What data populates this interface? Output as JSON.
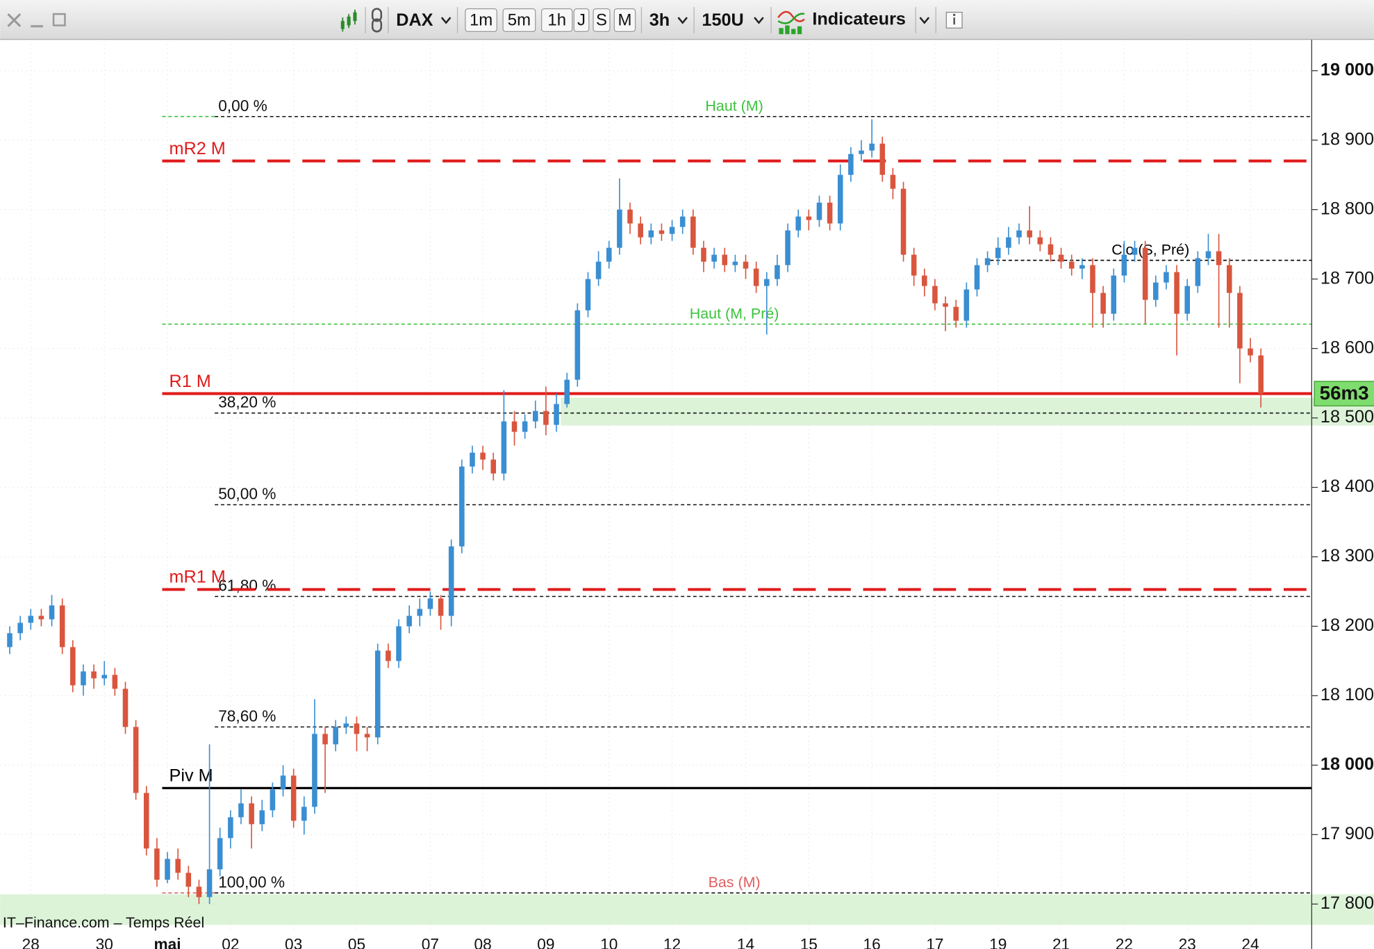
{
  "toolbar": {
    "symbol": "DAX",
    "intervals": [
      "1m",
      "5m",
      "1h",
      "J",
      "S",
      "M"
    ],
    "period": "3h",
    "units": "150U",
    "indicators": "Indicateurs"
  },
  "chart_data": {
    "type": "candlestick",
    "categories": [
      null,
      null,
      "28",
      null,
      null,
      null,
      null,
      null,
      null,
      "30",
      null,
      null,
      null,
      null,
      null,
      "mai",
      null,
      null,
      null,
      null,
      null,
      "02",
      null,
      null,
      null,
      null,
      null,
      "03",
      null,
      null,
      null,
      null,
      null,
      "05",
      null,
      null,
      null,
      null,
      null,
      null,
      "07",
      null,
      null,
      null,
      null,
      "08",
      null,
      null,
      null,
      null,
      null,
      "09",
      null,
      null,
      null,
      null,
      null,
      "10",
      null,
      null,
      null,
      null,
      null,
      "12",
      null,
      null,
      null,
      null,
      null,
      null,
      "14",
      null,
      null,
      null,
      null,
      null,
      "15",
      null,
      null,
      null,
      null,
      null,
      "16",
      null,
      null,
      null,
      null,
      null,
      "17",
      null,
      null,
      null,
      null,
      null,
      "19",
      null,
      null,
      null,
      null,
      null,
      "21",
      null,
      null,
      null,
      null,
      null,
      "22",
      null,
      null,
      null,
      null,
      null,
      "23",
      null,
      null,
      null,
      null,
      null,
      "24",
      null
    ],
    "open": [
      18170,
      18190,
      18205,
      18215,
      18210,
      18230,
      18170,
      18115,
      18135,
      18125,
      18130,
      18110,
      18055,
      17960,
      17880,
      17835,
      17865,
      17845,
      17825,
      17810,
      17850,
      17895,
      17925,
      17945,
      17915,
      17935,
      17965,
      17985,
      17920,
      17940,
      18045,
      18030,
      18055,
      18060,
      18045,
      18040,
      18165,
      18150,
      18200,
      18215,
      18225,
      18240,
      18215,
      18315,
      18430,
      18450,
      18440,
      18420,
      18495,
      18480,
      18495,
      18510,
      18490,
      18520,
      18555,
      18655,
      18700,
      18725,
      18745,
      18800,
      18780,
      18760,
      18770,
      18765,
      18775,
      18790,
      18745,
      18725,
      18735,
      18720,
      18725,
      18715,
      18690,
      18700,
      18720,
      18770,
      18790,
      18785,
      18810,
      18780,
      18850,
      18880,
      18885,
      18895,
      18850,
      18830,
      18735,
      18705,
      18690,
      18665,
      18660,
      18640,
      18685,
      18720,
      18730,
      18745,
      18760,
      18770,
      18760,
      18750,
      18735,
      18725,
      18715,
      18720,
      18680,
      18650,
      18705,
      18735,
      18745,
      18670,
      18695,
      18710,
      18650,
      18690,
      18730,
      18740,
      18720,
      18680,
      18600,
      18590
    ],
    "high": [
      18200,
      18215,
      18225,
      18225,
      18245,
      18240,
      18180,
      18145,
      18145,
      18150,
      18140,
      18120,
      18065,
      17970,
      17895,
      17875,
      17880,
      17855,
      17835,
      18030,
      17910,
      17935,
      17965,
      17955,
      17950,
      17975,
      18000,
      17995,
      17955,
      18095,
      18055,
      18065,
      18070,
      18070,
      18055,
      18175,
      18175,
      18210,
      18230,
      18240,
      18250,
      18245,
      18325,
      18440,
      18460,
      18460,
      18450,
      18540,
      18510,
      18505,
      18525,
      18545,
      18535,
      18565,
      18665,
      18710,
      18740,
      18755,
      18845,
      18810,
      18790,
      18780,
      18780,
      18785,
      18800,
      18800,
      18755,
      18745,
      18745,
      18735,
      18735,
      18725,
      18710,
      18735,
      18780,
      18800,
      18800,
      18820,
      18820,
      18865,
      18890,
      18900,
      18930,
      18905,
      18860,
      18840,
      18745,
      18715,
      18700,
      18675,
      18670,
      18695,
      18730,
      18740,
      18760,
      18775,
      18780,
      18805,
      18770,
      18760,
      18745,
      18735,
      18730,
      18730,
      18690,
      18715,
      18755,
      18755,
      18755,
      18705,
      18720,
      18720,
      18700,
      18740,
      18765,
      18765,
      18730,
      18690,
      18615,
      18600
    ],
    "low": [
      18160,
      18180,
      18195,
      18200,
      18200,
      18160,
      18105,
      18100,
      18110,
      18115,
      18100,
      18045,
      17950,
      17870,
      17825,
      17830,
      17835,
      17810,
      17800,
      17800,
      17840,
      17880,
      17915,
      17880,
      17905,
      17925,
      17955,
      17910,
      17900,
      17930,
      17960,
      18020,
      18045,
      18020,
      18020,
      18030,
      18140,
      18140,
      18190,
      18200,
      18215,
      18195,
      18200,
      18305,
      18420,
      18425,
      18410,
      18410,
      18460,
      18470,
      18485,
      18475,
      18480,
      18515,
      18545,
      18645,
      18690,
      18715,
      18735,
      18765,
      18750,
      18750,
      18755,
      18755,
      18765,
      18735,
      18710,
      18715,
      18710,
      18710,
      18700,
      18680,
      18620,
      18690,
      18710,
      18760,
      18770,
      18775,
      18770,
      18770,
      18840,
      18870,
      18875,
      18840,
      18815,
      18725,
      18690,
      18675,
      18655,
      18625,
      18630,
      18630,
      18675,
      18710,
      18720,
      18735,
      18750,
      18750,
      18740,
      18725,
      18715,
      18705,
      18700,
      18630,
      18630,
      18640,
      18695,
      18725,
      18635,
      18660,
      18685,
      18590,
      18640,
      18680,
      18720,
      18630,
      18630,
      18550,
      18580,
      18515
    ],
    "close": [
      18190,
      18205,
      18215,
      18210,
      18230,
      18170,
      18115,
      18135,
      18125,
      18130,
      18110,
      18055,
      17960,
      17880,
      17835,
      17865,
      17845,
      17825,
      17810,
      17850,
      17895,
      17925,
      17945,
      17915,
      17935,
      17965,
      17985,
      17920,
      17940,
      18045,
      18030,
      18055,
      18060,
      18045,
      18040,
      18165,
      18150,
      18200,
      18215,
      18225,
      18240,
      18215,
      18315,
      18430,
      18450,
      18440,
      18420,
      18495,
      18480,
      18495,
      18510,
      18490,
      18520,
      18555,
      18655,
      18700,
      18725,
      18745,
      18800,
      18780,
      18760,
      18770,
      18765,
      18775,
      18790,
      18745,
      18725,
      18735,
      18720,
      18725,
      18715,
      18690,
      18700,
      18720,
      18770,
      18790,
      18785,
      18810,
      18780,
      18850,
      18880,
      18885,
      18895,
      18850,
      18830,
      18735,
      18705,
      18690,
      18665,
      18660,
      18640,
      18685,
      18720,
      18730,
      18745,
      18760,
      18770,
      18760,
      18750,
      18735,
      18725,
      18715,
      18720,
      18680,
      18650,
      18705,
      18735,
      18745,
      18670,
      18695,
      18710,
      18650,
      18690,
      18730,
      18740,
      18720,
      18680,
      18600,
      18590,
      18535
    ],
    "up_color": "#3a8ed2",
    "down_color": "#d9553d",
    "ylim": [
      17758,
      19045
    ],
    "yticks": [
      {
        "value": 17800,
        "label": "17 800"
      },
      {
        "value": 17900,
        "label": "17 900"
      },
      {
        "value": 18000,
        "label": "18 000"
      },
      {
        "value": 18100,
        "label": "18 100"
      },
      {
        "value": 18200,
        "label": "18 200"
      },
      {
        "value": 18300,
        "label": "18 300"
      },
      {
        "value": 18400,
        "label": "18 400"
      },
      {
        "value": 18500,
        "label": "18 500"
      },
      {
        "value": 18600,
        "label": "18 600"
      },
      {
        "value": 18700,
        "label": "18 700"
      },
      {
        "value": 18800,
        "label": "18 800"
      },
      {
        "value": 18900,
        "label": "18 900"
      },
      {
        "value": 19000,
        "label": "19 000"
      }
    ],
    "grid": true,
    "zones": [
      {
        "from": 18489,
        "to": 18529,
        "color": "#dcf3d8"
      },
      {
        "from": 17770,
        "to": 17814,
        "color": "#dcf3d8"
      }
    ],
    "pivots": [
      {
        "label": "mR2 M",
        "value": 18870,
        "color": "#e01b1b",
        "dashed": true
      },
      {
        "label": "R1 M",
        "value": 18535,
        "color": "#e01b1b",
        "dashed": false
      },
      {
        "label": "mR1 M",
        "value": 18253,
        "color": "#e01b1b",
        "dashed": true
      },
      {
        "label": "Piv M",
        "value": 17967,
        "color": "#000000",
        "dashed": false
      }
    ],
    "fibonacci": [
      {
        "label": "0,00 %",
        "value": 18934
      },
      {
        "label": "38,20 %",
        "value": 18507
      },
      {
        "label": "50,00 %",
        "value": 18375
      },
      {
        "label": "61,80 %",
        "value": 18243
      },
      {
        "label": "78,60 %",
        "value": 18055
      },
      {
        "label": "100,00 %",
        "value": 17816
      }
    ],
    "extremes": [
      {
        "label": "Haut (M)",
        "value": 18934,
        "color": "#3cc23c"
      },
      {
        "label": "Haut (M, Pré)",
        "value": 18635,
        "color": "#3cc23c"
      },
      {
        "label": "Bas (M)",
        "value": 17816,
        "color": "#e06060"
      },
      {
        "label": "Clo (S, Pré)",
        "value": 18727,
        "color": "#000000"
      }
    ],
    "countdown": "56m3",
    "countdown_color": "#7fdc6e"
  },
  "footer": "IT–Finance.com – Temps Réel"
}
